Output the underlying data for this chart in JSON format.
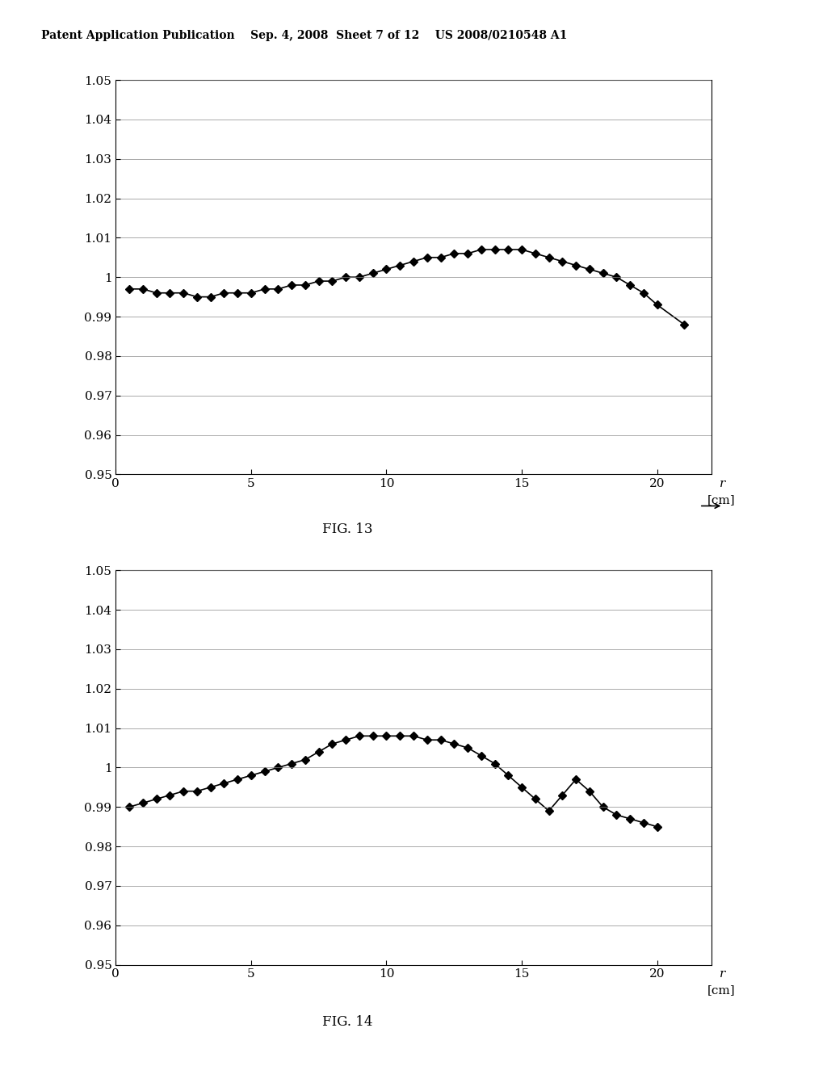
{
  "fig13": {
    "x": [
      0.5,
      1,
      1.5,
      2,
      2.5,
      3,
      3.5,
      4,
      4.5,
      5,
      5.5,
      6,
      6.5,
      7,
      7.5,
      8,
      8.5,
      9,
      9.5,
      10,
      10.5,
      11,
      11.5,
      12,
      12.5,
      13,
      13.5,
      14,
      14.5,
      15,
      15.5,
      16,
      16.5,
      17,
      17.5,
      18,
      18.5,
      19,
      19.5,
      20,
      21
    ],
    "y": [
      0.997,
      0.997,
      0.996,
      0.996,
      0.996,
      0.995,
      0.995,
      0.996,
      0.996,
      0.996,
      0.997,
      0.997,
      0.998,
      0.998,
      0.999,
      0.999,
      1.0,
      1.0,
      1.001,
      1.002,
      1.003,
      1.004,
      1.005,
      1.005,
      1.006,
      1.006,
      1.007,
      1.007,
      1.007,
      1.007,
      1.006,
      1.005,
      1.004,
      1.003,
      1.002,
      1.001,
      1.0,
      0.998,
      0.996,
      0.993,
      0.988
    ],
    "xlabel": "r [cm]",
    "ylabel": "",
    "title": "FIG. 13",
    "xlim": [
      0,
      22
    ],
    "ylim": [
      0.95,
      1.05
    ],
    "yticks": [
      0.95,
      0.96,
      0.97,
      0.98,
      0.99,
      1.0,
      1.01,
      1.02,
      1.03,
      1.04,
      1.05
    ],
    "xticks": [
      0,
      5,
      10,
      15,
      20
    ]
  },
  "fig14": {
    "x": [
      0.5,
      1,
      1.5,
      2,
      2.5,
      3,
      3.5,
      4,
      4.5,
      5,
      5.5,
      6,
      6.5,
      7,
      7.5,
      8,
      8.5,
      9,
      9.5,
      10,
      10.5,
      11,
      11.5,
      12,
      12.5,
      13,
      13.5,
      14,
      14.5,
      15,
      15.5,
      16,
      16.5,
      17,
      17.5,
      18,
      18.5,
      19,
      19.5,
      20
    ],
    "y": [
      0.99,
      0.991,
      0.992,
      0.993,
      0.994,
      0.994,
      0.995,
      0.996,
      0.997,
      0.998,
      0.999,
      1.0,
      1.001,
      1.002,
      1.004,
      1.006,
      1.007,
      1.008,
      1.008,
      1.008,
      1.008,
      1.008,
      1.007,
      1.007,
      1.006,
      1.005,
      1.003,
      1.001,
      0.998,
      0.995,
      0.992,
      0.989,
      0.993,
      0.997,
      0.994,
      0.99,
      0.988,
      0.987,
      0.986,
      0.985
    ],
    "xlabel": "r [cm]",
    "ylabel": "",
    "title": "FIG. 14",
    "xlim": [
      0,
      22
    ],
    "ylim": [
      0.95,
      1.05
    ],
    "yticks": [
      0.95,
      0.96,
      0.97,
      0.98,
      0.99,
      1.0,
      1.01,
      1.02,
      1.03,
      1.04,
      1.05
    ],
    "xticks": [
      0,
      5,
      10,
      15,
      20
    ]
  },
  "header_text": "Patent Application Publication    Sep. 4, 2008  Sheet 7 of 12    US 2008/0210548 A1",
  "bg_color": "#ffffff",
  "line_color": "#000000",
  "marker": "D",
  "markersize": 5,
  "linewidth": 1.2,
  "fontsize_ticks": 11,
  "fontsize_label": 11,
  "fontsize_title": 12,
  "fontsize_header": 10
}
